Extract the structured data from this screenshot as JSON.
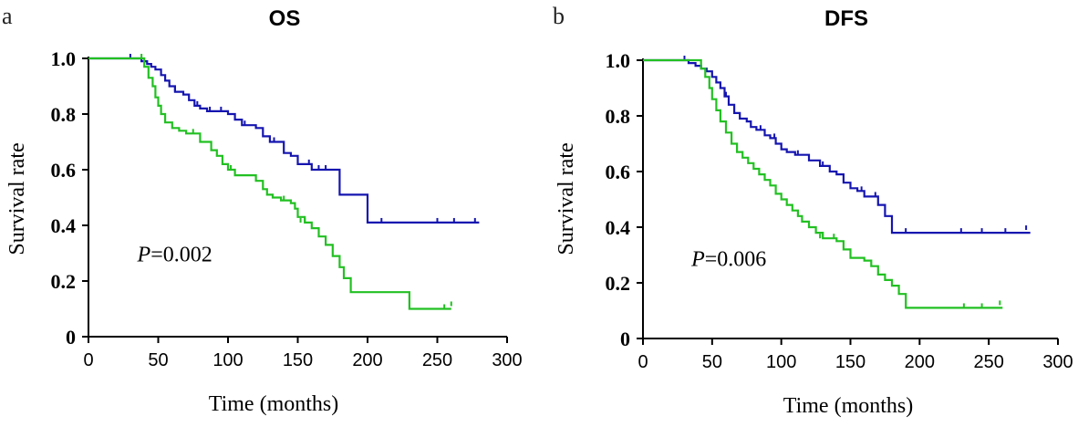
{
  "chart_data": [
    {
      "type": "line",
      "panel_label": "a",
      "title": "OS",
      "xlabel": "Time (months)",
      "ylabel": "Survival rate",
      "xlim": [
        0,
        300
      ],
      "ylim": [
        0,
        1.0
      ],
      "x_ticks": [
        0,
        50,
        100,
        150,
        200,
        250,
        300
      ],
      "y_ticks": [
        0,
        0.2,
        0.4,
        0.6,
        0.8,
        1.0
      ],
      "y_tick_labels": [
        "0",
        "0.2",
        "0.4",
        "0.6",
        "0.8",
        "1.0"
      ],
      "grid": false,
      "annotation": {
        "italic": "P",
        "text": "=0.002",
        "x": 35,
        "y": 0.27
      },
      "series": [
        {
          "color": "#1515b0",
          "steps": [
            [
              0,
              1.0
            ],
            [
              38,
              0.99
            ],
            [
              42,
              0.98
            ],
            [
              45,
              0.97
            ],
            [
              48,
              0.96
            ],
            [
              52,
              0.94
            ],
            [
              55,
              0.92
            ],
            [
              58,
              0.9
            ],
            [
              62,
              0.88
            ],
            [
              68,
              0.87
            ],
            [
              72,
              0.85
            ],
            [
              76,
              0.83
            ],
            [
              80,
              0.82
            ],
            [
              85,
              0.81
            ],
            [
              100,
              0.8
            ],
            [
              105,
              0.78
            ],
            [
              110,
              0.76
            ],
            [
              120,
              0.75
            ],
            [
              125,
              0.72
            ],
            [
              130,
              0.7
            ],
            [
              140,
              0.66
            ],
            [
              145,
              0.65
            ],
            [
              150,
              0.62
            ],
            [
              155,
              0.62
            ],
            [
              160,
              0.6
            ],
            [
              175,
              0.6
            ],
            [
              180,
              0.51
            ],
            [
              200,
              0.41
            ],
            [
              280,
              0.41
            ]
          ],
          "censored": [
            [
              30,
              1.0
            ],
            [
              62,
              0.88
            ],
            [
              78,
              0.83
            ],
            [
              87,
              0.81
            ],
            [
              95,
              0.81
            ],
            [
              112,
              0.76
            ],
            [
              133,
              0.7
            ],
            [
              150,
              0.62
            ],
            [
              158,
              0.62
            ],
            [
              165,
              0.6
            ],
            [
              170,
              0.6
            ],
            [
              210,
              0.41
            ],
            [
              250,
              0.41
            ],
            [
              262,
              0.41
            ],
            [
              277,
              0.41
            ]
          ]
        },
        {
          "color": "#22c022",
          "steps": [
            [
              0,
              1.0
            ],
            [
              35,
              1.0
            ],
            [
              40,
              0.97
            ],
            [
              43,
              0.93
            ],
            [
              46,
              0.9
            ],
            [
              48,
              0.86
            ],
            [
              50,
              0.83
            ],
            [
              52,
              0.8
            ],
            [
              55,
              0.77
            ],
            [
              60,
              0.75
            ],
            [
              65,
              0.74
            ],
            [
              70,
              0.73
            ],
            [
              80,
              0.7
            ],
            [
              88,
              0.67
            ],
            [
              92,
              0.65
            ],
            [
              96,
              0.62
            ],
            [
              100,
              0.6
            ],
            [
              105,
              0.58
            ],
            [
              118,
              0.58
            ],
            [
              120,
              0.56
            ],
            [
              125,
              0.53
            ],
            [
              128,
              0.51
            ],
            [
              132,
              0.5
            ],
            [
              138,
              0.49
            ],
            [
              145,
              0.48
            ],
            [
              148,
              0.46
            ],
            [
              150,
              0.43
            ],
            [
              155,
              0.41
            ],
            [
              160,
              0.39
            ],
            [
              165,
              0.36
            ],
            [
              170,
              0.33
            ],
            [
              175,
              0.29
            ],
            [
              180,
              0.25
            ],
            [
              183,
              0.21
            ],
            [
              188,
              0.16
            ],
            [
              230,
              0.1
            ],
            [
              260,
              0.1
            ]
          ],
          "censored": [
            [
              38,
              1.0
            ],
            [
              75,
              0.73
            ],
            [
              102,
              0.6
            ],
            [
              140,
              0.49
            ],
            [
              152,
              0.41
            ],
            [
              155,
              0.41
            ],
            [
              255,
              0.1
            ],
            [
              260,
              0.11
            ]
          ]
        }
      ]
    },
    {
      "type": "line",
      "panel_label": "b",
      "title": "DFS",
      "xlabel": "Time (months)",
      "ylabel": "Survival rate",
      "xlim": [
        0,
        300
      ],
      "ylim": [
        0,
        1.0
      ],
      "x_ticks": [
        0,
        50,
        100,
        150,
        200,
        250,
        300
      ],
      "y_ticks": [
        0,
        0.2,
        0.4,
        0.6,
        0.8,
        1.0
      ],
      "y_tick_labels": [
        "0",
        "0.2",
        "0.4",
        "0.6",
        "0.8",
        "1.0"
      ],
      "grid": false,
      "annotation": {
        "italic": "P",
        "text": "=0.006",
        "x": 35,
        "y": 0.26
      },
      "series": [
        {
          "color": "#1515b0",
          "steps": [
            [
              0,
              1.0
            ],
            [
              30,
              1.0
            ],
            [
              33,
              0.99
            ],
            [
              38,
              0.98
            ],
            [
              42,
              0.97
            ],
            [
              46,
              0.96
            ],
            [
              50,
              0.94
            ],
            [
              53,
              0.92
            ],
            [
              56,
              0.9
            ],
            [
              59,
              0.87
            ],
            [
              62,
              0.84
            ],
            [
              66,
              0.81
            ],
            [
              70,
              0.79
            ],
            [
              75,
              0.78
            ],
            [
              78,
              0.76
            ],
            [
              82,
              0.75
            ],
            [
              88,
              0.73
            ],
            [
              92,
              0.72
            ],
            [
              96,
              0.7
            ],
            [
              100,
              0.68
            ],
            [
              104,
              0.67
            ],
            [
              110,
              0.66
            ],
            [
              120,
              0.64
            ],
            [
              128,
              0.62
            ],
            [
              135,
              0.6
            ],
            [
              140,
              0.59
            ],
            [
              145,
              0.56
            ],
            [
              150,
              0.54
            ],
            [
              155,
              0.53
            ],
            [
              160,
              0.51
            ],
            [
              170,
              0.48
            ],
            [
              175,
              0.44
            ],
            [
              180,
              0.38
            ],
            [
              280,
              0.38
            ]
          ],
          "censored": [
            [
              30,
              1.0
            ],
            [
              60,
              0.87
            ],
            [
              85,
              0.75
            ],
            [
              95,
              0.72
            ],
            [
              112,
              0.66
            ],
            [
              130,
              0.62
            ],
            [
              158,
              0.53
            ],
            [
              168,
              0.51
            ],
            [
              190,
              0.38
            ],
            [
              230,
              0.38
            ],
            [
              245,
              0.38
            ],
            [
              262,
              0.38
            ],
            [
              277,
              0.39
            ]
          ]
        },
        {
          "color": "#22c022",
          "steps": [
            [
              0,
              1.0
            ],
            [
              40,
              1.0
            ],
            [
              42,
              0.97
            ],
            [
              45,
              0.94
            ],
            [
              48,
              0.9
            ],
            [
              50,
              0.86
            ],
            [
              53,
              0.82
            ],
            [
              56,
              0.78
            ],
            [
              60,
              0.74
            ],
            [
              64,
              0.7
            ],
            [
              68,
              0.67
            ],
            [
              72,
              0.65
            ],
            [
              76,
              0.63
            ],
            [
              80,
              0.61
            ],
            [
              84,
              0.59
            ],
            [
              88,
              0.57
            ],
            [
              92,
              0.55
            ],
            [
              96,
              0.52
            ],
            [
              100,
              0.5
            ],
            [
              104,
              0.48
            ],
            [
              108,
              0.46
            ],
            [
              112,
              0.44
            ],
            [
              115,
              0.42
            ],
            [
              120,
              0.4
            ],
            [
              125,
              0.38
            ],
            [
              130,
              0.36
            ],
            [
              140,
              0.35
            ],
            [
              145,
              0.32
            ],
            [
              150,
              0.29
            ],
            [
              160,
              0.28
            ],
            [
              165,
              0.26
            ],
            [
              170,
              0.23
            ],
            [
              175,
              0.21
            ],
            [
              180,
              0.19
            ],
            [
              185,
              0.16
            ],
            [
              190,
              0.11
            ],
            [
              260,
              0.11
            ]
          ],
          "censored": [
            [
              88,
              0.57
            ],
            [
              128,
              0.36
            ],
            [
              138,
              0.36
            ],
            [
              232,
              0.11
            ],
            [
              245,
              0.11
            ],
            [
              258,
              0.12
            ]
          ]
        }
      ]
    }
  ]
}
